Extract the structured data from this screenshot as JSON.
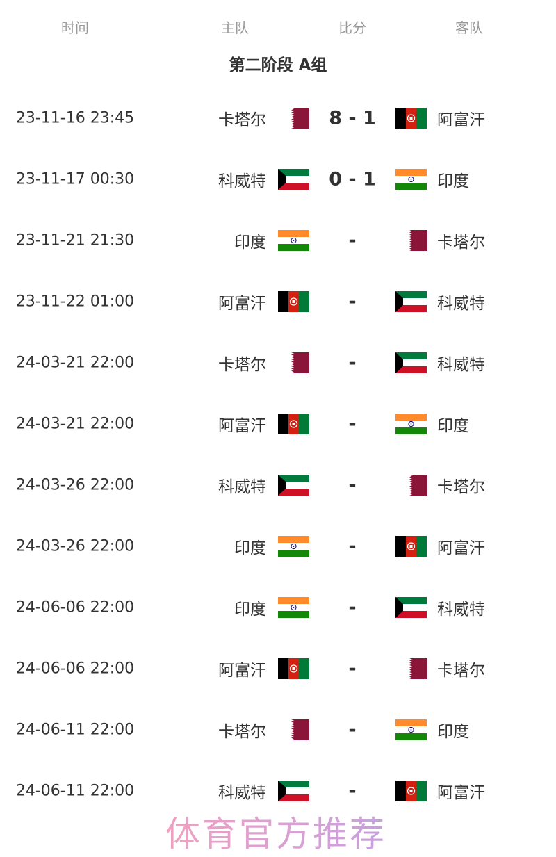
{
  "header": {
    "time": "时间",
    "home": "主队",
    "score": "比分",
    "away": "客队"
  },
  "group_title": "第二阶段 A组",
  "flags": {
    "qatar": "qatar-flag",
    "afghanistan": "afghanistan-flag",
    "kuwait": "kuwait-flag",
    "india": "india-flag"
  },
  "matches": [
    {
      "time": "23-11-16 23:45",
      "home": "卡塔尔",
      "home_flag": "qatar",
      "score": "8 - 1",
      "away": "阿富汗",
      "away_flag": "afghanistan"
    },
    {
      "time": "23-11-17 00:30",
      "home": "科威特",
      "home_flag": "kuwait",
      "score": "0 - 1",
      "away": "印度",
      "away_flag": "india"
    },
    {
      "time": "23-11-21 21:30",
      "home": "印度",
      "home_flag": "india",
      "score": "-",
      "away": "卡塔尔",
      "away_flag": "qatar"
    },
    {
      "time": "23-11-22 01:00",
      "home": "阿富汗",
      "home_flag": "afghanistan",
      "score": "-",
      "away": "科威特",
      "away_flag": "kuwait"
    },
    {
      "time": "24-03-21 22:00",
      "home": "卡塔尔",
      "home_flag": "qatar",
      "score": "-",
      "away": "科威特",
      "away_flag": "kuwait"
    },
    {
      "time": "24-03-21 22:00",
      "home": "阿富汗",
      "home_flag": "afghanistan",
      "score": "-",
      "away": "印度",
      "away_flag": "india"
    },
    {
      "time": "24-03-26 22:00",
      "home": "科威特",
      "home_flag": "kuwait",
      "score": "-",
      "away": "卡塔尔",
      "away_flag": "qatar"
    },
    {
      "time": "24-03-26 22:00",
      "home": "印度",
      "home_flag": "india",
      "score": "-",
      "away": "阿富汗",
      "away_flag": "afghanistan"
    },
    {
      "time": "24-06-06 22:00",
      "home": "印度",
      "home_flag": "india",
      "score": "-",
      "away": "科威特",
      "away_flag": "kuwait"
    },
    {
      "time": "24-06-06 22:00",
      "home": "阿富汗",
      "home_flag": "afghanistan",
      "score": "-",
      "away": "卡塔尔",
      "away_flag": "qatar"
    },
    {
      "time": "24-06-11 22:00",
      "home": "卡塔尔",
      "home_flag": "qatar",
      "score": "-",
      "away": "印度",
      "away_flag": "india"
    },
    {
      "time": "24-06-11 22:00",
      "home": "科威特",
      "home_flag": "kuwait",
      "score": "-",
      "away": "阿富汗",
      "away_flag": "afghanistan"
    }
  ],
  "watermark": "体育官方推荐"
}
